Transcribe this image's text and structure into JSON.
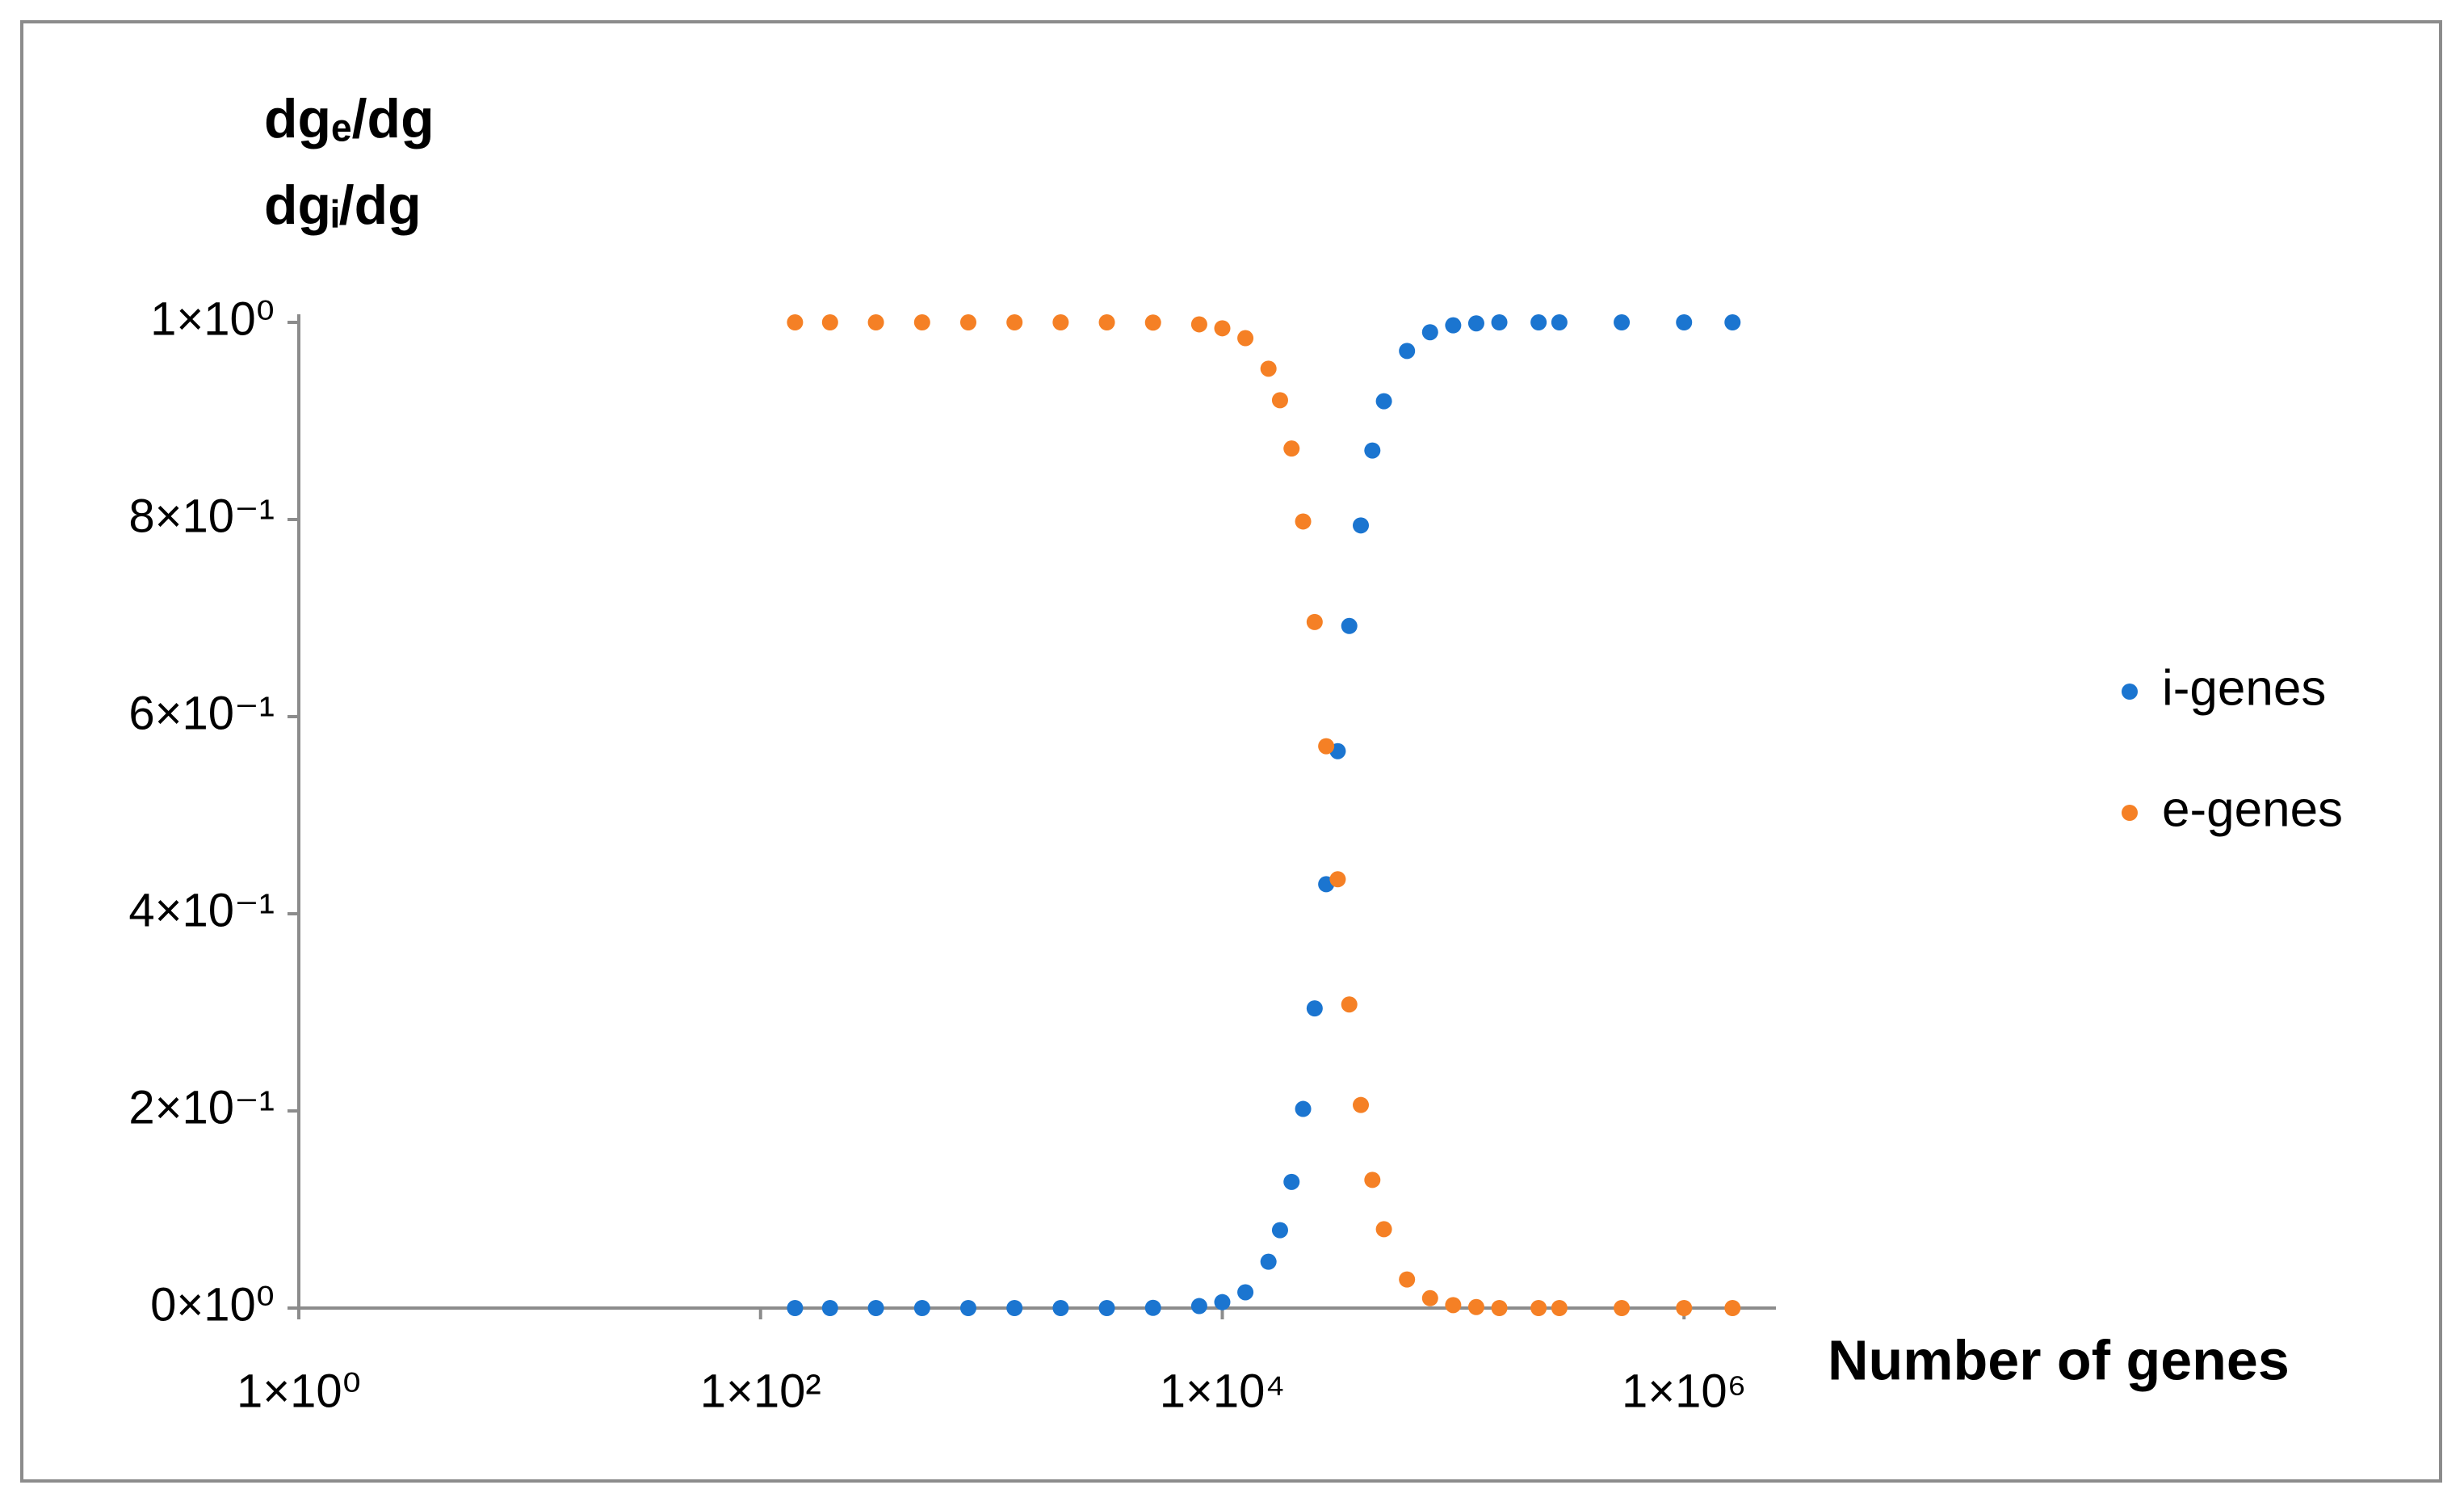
{
  "chart_data": {
    "type": "scatter",
    "y_label_lines": [
      "dgₑ/dg",
      "dgᵢ/dg"
    ],
    "x_label": "Number of genes",
    "x_scale": "log",
    "legend_position": "right",
    "xlim": [
      1,
      2500000
    ],
    "xticks": [
      {
        "value": 1,
        "label": "1×10⁰"
      },
      {
        "value": 100,
        "label": "1×10²"
      },
      {
        "value": 10000,
        "label": "1×10⁴"
      },
      {
        "value": 1000000,
        "label": "1×10⁶"
      }
    ],
    "ylim": [
      0,
      1
    ],
    "yticks": [
      {
        "value": 0,
        "label": "0×10⁰"
      },
      {
        "value": 0.2,
        "label": "2×10⁻¹"
      },
      {
        "value": 0.4,
        "label": "4×10⁻¹"
      },
      {
        "value": 0.6,
        "label": "6×10⁻¹"
      },
      {
        "value": 0.8,
        "label": "8×10⁻¹"
      },
      {
        "value": 1,
        "label": "1×10⁰"
      }
    ],
    "x": [
      141,
      200,
      316,
      501,
      794,
      1259,
      1995,
      3162,
      5012,
      7943,
      10000,
      12589,
      15849,
      17783,
      19953,
      22387,
      25119,
      28184,
      31623,
      35481,
      39811,
      44668,
      50119,
      63096,
      79433,
      100000,
      125893,
      158489,
      234423,
      288403,
      537032,
      1000000,
      1621810
    ],
    "series": [
      {
        "name": "i-genes",
        "color": "#1b75d0",
        "values": [
          0,
          0,
          0,
          0,
          0,
          0,
          0,
          0,
          0.0002,
          0.002,
          0.006,
          0.016,
          0.047,
          0.079,
          0.128,
          0.202,
          0.304,
          0.43,
          0.565,
          0.692,
          0.794,
          0.87,
          0.92,
          0.971,
          0.99,
          0.997,
          0.999,
          1,
          1,
          1,
          1,
          1,
          1
        ]
      },
      {
        "name": "e-genes",
        "color": "#f58025",
        "values": [
          1,
          1,
          1,
          1,
          1,
          1,
          1,
          1,
          0.9998,
          0.998,
          0.994,
          0.984,
          0.953,
          0.921,
          0.872,
          0.798,
          0.696,
          0.57,
          0.435,
          0.308,
          0.206,
          0.13,
          0.08,
          0.029,
          0.01,
          0.003,
          0.001,
          0,
          0,
          0,
          0,
          0,
          0
        ]
      }
    ]
  }
}
